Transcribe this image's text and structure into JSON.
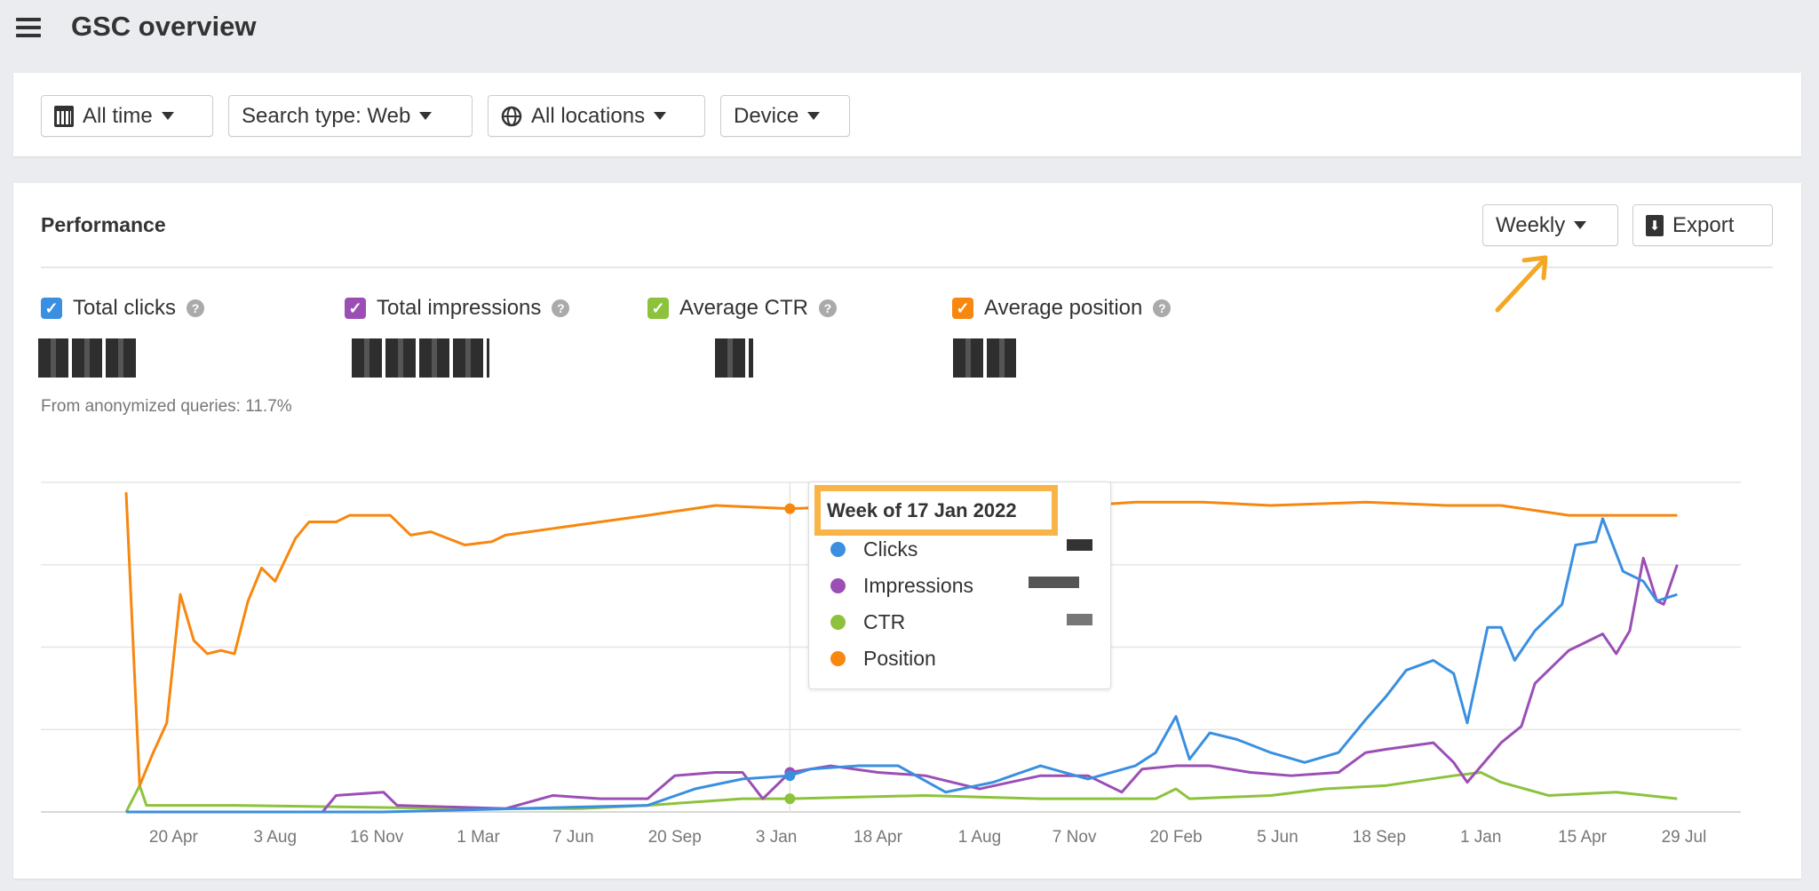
{
  "header": {
    "title": "GSC overview",
    "menu_icon": "hamburger-icon"
  },
  "filters": [
    {
      "label": "All time",
      "icon": "calendar-icon"
    },
    {
      "label": "Search type: Web"
    },
    {
      "label": "All locations",
      "icon": "globe-icon"
    },
    {
      "label": "Device"
    }
  ],
  "performance": {
    "title": "Performance",
    "interval_label": "Weekly",
    "export_label": "Export",
    "metrics": [
      {
        "label": "Total clicks",
        "color": "#3a8fe0",
        "checked": true
      },
      {
        "label": "Total impressions",
        "color": "#9b4fb5",
        "checked": true
      },
      {
        "label": "Average CTR",
        "color": "#8dc23c",
        "checked": true
      },
      {
        "label": "Average position",
        "color": "#f7870f",
        "checked": true
      }
    ],
    "anonymized_note": "From anonymized queries: 11.7%"
  },
  "tooltip": {
    "title": "Week of 17 Jan 2022",
    "rows": [
      {
        "label": "Clicks",
        "color": "#3a8fe0"
      },
      {
        "label": "Impressions",
        "color": "#9b4fb5"
      },
      {
        "label": "CTR",
        "color": "#8dc23c"
      },
      {
        "label": "Position",
        "color": "#f7870f"
      }
    ]
  },
  "chart_data": {
    "type": "line",
    "xlabel": "week",
    "ylabel": "relative value (0-100, axis values hidden)",
    "xlim": [
      0,
      232
    ],
    "ylim": [
      0,
      100
    ],
    "grid": true,
    "x_ticks": [
      {
        "w": 7,
        "label": "20 Apr"
      },
      {
        "w": 22,
        "label": "3 Aug"
      },
      {
        "w": 37,
        "label": "16 Nov"
      },
      {
        "w": 52,
        "label": "1 Mar"
      },
      {
        "w": 66,
        "label": "7 Jun"
      },
      {
        "w": 81,
        "label": "20 Sep"
      },
      {
        "w": 96,
        "label": "3 Jan"
      },
      {
        "w": 111,
        "label": "18 Apr"
      },
      {
        "w": 126,
        "label": "1 Aug"
      },
      {
        "w": 140,
        "label": "7 Nov"
      },
      {
        "w": 155,
        "label": "20 Feb"
      },
      {
        "w": 170,
        "label": "5 Jun"
      },
      {
        "w": 185,
        "label": "18 Sep"
      },
      {
        "w": 200,
        "label": "1 Jan"
      },
      {
        "w": 215,
        "label": "15 Apr"
      },
      {
        "w": 230,
        "label": "29 Jul"
      }
    ],
    "hover_week": 98,
    "series": [
      {
        "name": "Position",
        "color": "#f7870f",
        "points": [
          [
            0,
            97
          ],
          [
            2,
            8
          ],
          [
            4,
            18
          ],
          [
            6,
            27
          ],
          [
            8,
            66
          ],
          [
            10,
            52
          ],
          [
            12,
            48
          ],
          [
            14,
            49
          ],
          [
            16,
            48
          ],
          [
            18,
            64
          ],
          [
            20,
            74
          ],
          [
            22,
            70
          ],
          [
            25,
            83
          ],
          [
            27,
            88
          ],
          [
            31,
            88
          ],
          [
            33,
            90
          ],
          [
            39,
            90
          ],
          [
            42,
            84
          ],
          [
            45,
            85
          ],
          [
            50,
            81
          ],
          [
            54,
            82
          ],
          [
            56,
            84
          ],
          [
            63,
            86
          ],
          [
            70,
            88
          ],
          [
            77,
            90
          ],
          [
            87,
            93
          ],
          [
            98,
            92
          ],
          [
            111,
            93
          ],
          [
            135,
            92
          ],
          [
            149,
            94
          ],
          [
            159,
            94
          ],
          [
            169,
            93
          ],
          [
            183,
            94
          ],
          [
            195,
            93
          ],
          [
            203,
            93
          ],
          [
            213,
            90
          ],
          [
            224,
            90
          ],
          [
            229,
            90
          ]
        ]
      },
      {
        "name": "Clicks",
        "color": "#3a8fe0",
        "points": [
          [
            0,
            0
          ],
          [
            38,
            0
          ],
          [
            77,
            2
          ],
          [
            84,
            7
          ],
          [
            91,
            10
          ],
          [
            98,
            11
          ],
          [
            101,
            13
          ],
          [
            108,
            14
          ],
          [
            114,
            14
          ],
          [
            121,
            6
          ],
          [
            128,
            9
          ],
          [
            135,
            14
          ],
          [
            142,
            10
          ],
          [
            149,
            14
          ],
          [
            152,
            18
          ],
          [
            155,
            29
          ],
          [
            157,
            16
          ],
          [
            160,
            24
          ],
          [
            164,
            22
          ],
          [
            169,
            18
          ],
          [
            174,
            15
          ],
          [
            179,
            18
          ],
          [
            183,
            28
          ],
          [
            186,
            35
          ],
          [
            189,
            43
          ],
          [
            193,
            46
          ],
          [
            196,
            42
          ],
          [
            198,
            27
          ],
          [
            201,
            56
          ],
          [
            203,
            56
          ],
          [
            205,
            46
          ],
          [
            208,
            55
          ],
          [
            212,
            63
          ],
          [
            214,
            81
          ],
          [
            217,
            82
          ],
          [
            218,
            89
          ],
          [
            221,
            73
          ],
          [
            224,
            70
          ],
          [
            226,
            64
          ],
          [
            229,
            66
          ]
        ]
      },
      {
        "name": "Impressions",
        "color": "#9b4fb5",
        "points": [
          [
            0,
            0
          ],
          [
            29,
            0
          ],
          [
            31,
            5
          ],
          [
            38,
            6
          ],
          [
            40,
            2
          ],
          [
            56,
            1
          ],
          [
            63,
            5
          ],
          [
            70,
            4
          ],
          [
            77,
            4
          ],
          [
            81,
            11
          ],
          [
            87,
            12
          ],
          [
            91,
            12
          ],
          [
            94,
            4
          ],
          [
            98,
            12
          ],
          [
            104,
            14
          ],
          [
            111,
            12
          ],
          [
            118,
            11
          ],
          [
            126,
            7
          ],
          [
            135,
            11
          ],
          [
            142,
            11
          ],
          [
            147,
            6
          ],
          [
            150,
            13
          ],
          [
            155,
            14
          ],
          [
            160,
            14
          ],
          [
            166,
            12
          ],
          [
            172,
            11
          ],
          [
            179,
            12
          ],
          [
            183,
            18
          ],
          [
            186,
            19
          ],
          [
            193,
            21
          ],
          [
            196,
            15
          ],
          [
            198,
            9
          ],
          [
            203,
            21
          ],
          [
            206,
            26
          ],
          [
            208,
            39
          ],
          [
            213,
            49
          ],
          [
            218,
            54
          ],
          [
            220,
            48
          ],
          [
            222,
            55
          ],
          [
            224,
            77
          ],
          [
            226,
            64
          ],
          [
            227,
            63
          ],
          [
            229,
            75
          ]
        ]
      },
      {
        "name": "CTR",
        "color": "#8dc23c",
        "points": [
          [
            0,
            0
          ],
          [
            2,
            8
          ],
          [
            3,
            2
          ],
          [
            16,
            2
          ],
          [
            50,
            1
          ],
          [
            67,
            1
          ],
          [
            77,
            2
          ],
          [
            91,
            4
          ],
          [
            98,
            4
          ],
          [
            118,
            5
          ],
          [
            135,
            4
          ],
          [
            152,
            4
          ],
          [
            155,
            7
          ],
          [
            157,
            4
          ],
          [
            169,
            5
          ],
          [
            177,
            7
          ],
          [
            186,
            8
          ],
          [
            196,
            11
          ],
          [
            200,
            12
          ],
          [
            203,
            9
          ],
          [
            210,
            5
          ],
          [
            220,
            6
          ],
          [
            229,
            4
          ]
        ]
      }
    ]
  }
}
